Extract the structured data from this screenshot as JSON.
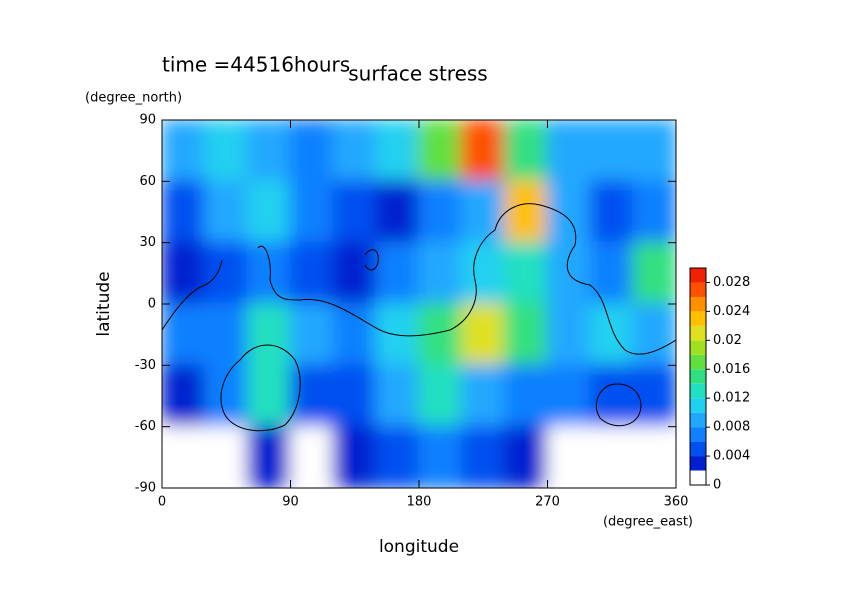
{
  "chart_data": {
    "type": "contour",
    "title": "surface stress",
    "subtitle": "time =44516hours",
    "x_label": "longitude",
    "x_unit": "(degree_east)",
    "y_label": "latitude",
    "y_unit": "(degree_north)",
    "xlim": [
      0,
      360
    ],
    "xticks": [
      0,
      90,
      180,
      270,
      360
    ],
    "ylim": [
      -90,
      90
    ],
    "yticks": [
      -90,
      -60,
      -30,
      0,
      30,
      60,
      90
    ],
    "x": [
      15,
      45,
      75,
      105,
      135,
      165,
      195,
      225,
      255,
      285,
      315,
      345
    ],
    "y": [
      75,
      45,
      15,
      -15,
      -45,
      -75
    ],
    "z": [
      [
        0.008,
        0.01,
        0.008,
        0.006,
        0.008,
        0.01,
        0.016,
        0.026,
        0.014,
        0.008,
        0.008,
        0.008
      ],
      [
        0.004,
        0.008,
        0.01,
        0.006,
        0.004,
        0.002,
        0.006,
        0.008,
        0.022,
        0.008,
        0.004,
        0.006
      ],
      [
        0.002,
        0.004,
        0.006,
        0.004,
        0.002,
        0.006,
        0.008,
        0.01,
        0.012,
        0.008,
        0.006,
        0.014
      ],
      [
        0.006,
        0.006,
        0.012,
        0.008,
        0.006,
        0.01,
        0.014,
        0.02,
        0.014,
        0.008,
        0.01,
        0.008
      ],
      [
        0.002,
        0.006,
        0.012,
        0.004,
        0.004,
        0.008,
        0.012,
        0.008,
        0.006,
        0.006,
        0.004,
        0.004
      ],
      [
        0,
        0,
        0.002,
        0,
        0.002,
        0.004,
        0.006,
        0.004,
        0.002,
        0,
        0,
        0
      ]
    ],
    "levels": [
      0,
      0.002,
      0.004,
      0.006,
      0.008,
      0.01,
      0.012,
      0.014,
      0.016,
      0.018,
      0.02,
      0.022,
      0.024,
      0.026,
      0.028,
      0.03
    ],
    "colors": [
      "#ffffff",
      "#0020d0",
      "#0050f0",
      "#1080ff",
      "#20a8ff",
      "#20d0f0",
      "#20e0c0",
      "#30e080",
      "#60e040",
      "#a0e020",
      "#e0e020",
      "#ffc000",
      "#ff9000",
      "#ff5000",
      "#f02000"
    ],
    "cbar_ticks": [
      0,
      0.004,
      0.008,
      0.012,
      0.016,
      0.02,
      0.024,
      0.028
    ]
  }
}
